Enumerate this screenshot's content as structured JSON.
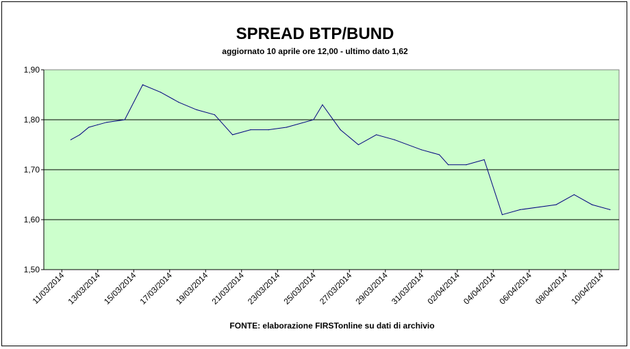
{
  "chart_data": {
    "type": "line",
    "title": "SPREAD BTP/BUND",
    "subtitle": "aggiornato 10 aprile ore 12,00 - ultimo dato 1,62",
    "source": "FONTE: elaborazione FIRSTonline su dati di archivio",
    "xlabel": "",
    "ylabel": "",
    "ylim": [
      1.5,
      1.9
    ],
    "yticks": [
      "1,50",
      "1,60",
      "1,70",
      "1,80",
      "1,90"
    ],
    "grid": true,
    "legend": "none",
    "x_tick_labels": [
      "11/03/2014",
      "13/03/2014",
      "15/03/2014",
      "17/03/2014",
      "19/03/2014",
      "21/03/2014",
      "23/03/2014",
      "25/03/2014",
      "27/03/2014",
      "29/03/2014",
      "31/03/2014",
      "02/04/2014",
      "04/04/2014",
      "06/04/2014",
      "08/04/2014",
      "10/04/2014"
    ],
    "x_tick_values": [
      "2014-03-11",
      "2014-03-13",
      "2014-03-15",
      "2014-03-17",
      "2014-03-19",
      "2014-03-21",
      "2014-03-23",
      "2014-03-25",
      "2014-03-27",
      "2014-03-29",
      "2014-03-31",
      "2014-04-02",
      "2014-04-04",
      "2014-04-06",
      "2014-04-08",
      "2014-04-10"
    ],
    "x_range": [
      "2014-03-10",
      "2014-04-11"
    ],
    "series": [
      {
        "points": [
          {
            "x": "2014-03-11 12:00",
            "y": 1.76
          },
          {
            "x": "2014-03-12 00:00",
            "y": 1.77
          },
          {
            "x": "2014-03-12 12:00",
            "y": 1.785
          },
          {
            "x": "2014-03-13 00:00",
            "y": 1.79
          },
          {
            "x": "2014-03-13 12:00",
            "y": 1.795
          },
          {
            "x": "2014-03-14 12:00",
            "y": 1.8
          },
          {
            "x": "2014-03-15 12:00",
            "y": 1.87
          },
          {
            "x": "2014-03-16 12:00",
            "y": 1.855
          },
          {
            "x": "2014-03-17 12:00",
            "y": 1.835
          },
          {
            "x": "2014-03-18 12:00",
            "y": 1.82
          },
          {
            "x": "2014-03-19 12:00",
            "y": 1.81
          },
          {
            "x": "2014-03-20 12:00",
            "y": 1.77
          },
          {
            "x": "2014-03-21 12:00",
            "y": 1.78
          },
          {
            "x": "2014-03-22 12:00",
            "y": 1.78
          },
          {
            "x": "2014-03-23 12:00",
            "y": 1.785
          },
          {
            "x": "2014-03-25 00:00",
            "y": 1.8
          },
          {
            "x": "2014-03-25 12:00",
            "y": 1.83
          },
          {
            "x": "2014-03-26 12:00",
            "y": 1.78
          },
          {
            "x": "2014-03-27 12:00",
            "y": 1.75
          },
          {
            "x": "2014-03-28 12:00",
            "y": 1.77
          },
          {
            "x": "2014-03-29 12:00",
            "y": 1.76
          },
          {
            "x": "2014-03-31 00:00",
            "y": 1.74
          },
          {
            "x": "2014-04-01 00:00",
            "y": 1.73
          },
          {
            "x": "2014-04-01 12:00",
            "y": 1.71
          },
          {
            "x": "2014-04-02 12:00",
            "y": 1.71
          },
          {
            "x": "2014-04-03 12:00",
            "y": 1.72
          },
          {
            "x": "2014-04-04 12:00",
            "y": 1.61
          },
          {
            "x": "2014-04-05 12:00",
            "y": 1.62
          },
          {
            "x": "2014-04-07 12:00",
            "y": 1.63
          },
          {
            "x": "2014-04-08 12:00",
            "y": 1.65
          },
          {
            "x": "2014-04-09 12:00",
            "y": 1.63
          },
          {
            "x": "2014-04-10 12:00",
            "y": 1.62
          }
        ]
      }
    ],
    "colors": {
      "plot_background": "#ccffcc",
      "line": "#000080",
      "gridline": "#000000"
    }
  }
}
